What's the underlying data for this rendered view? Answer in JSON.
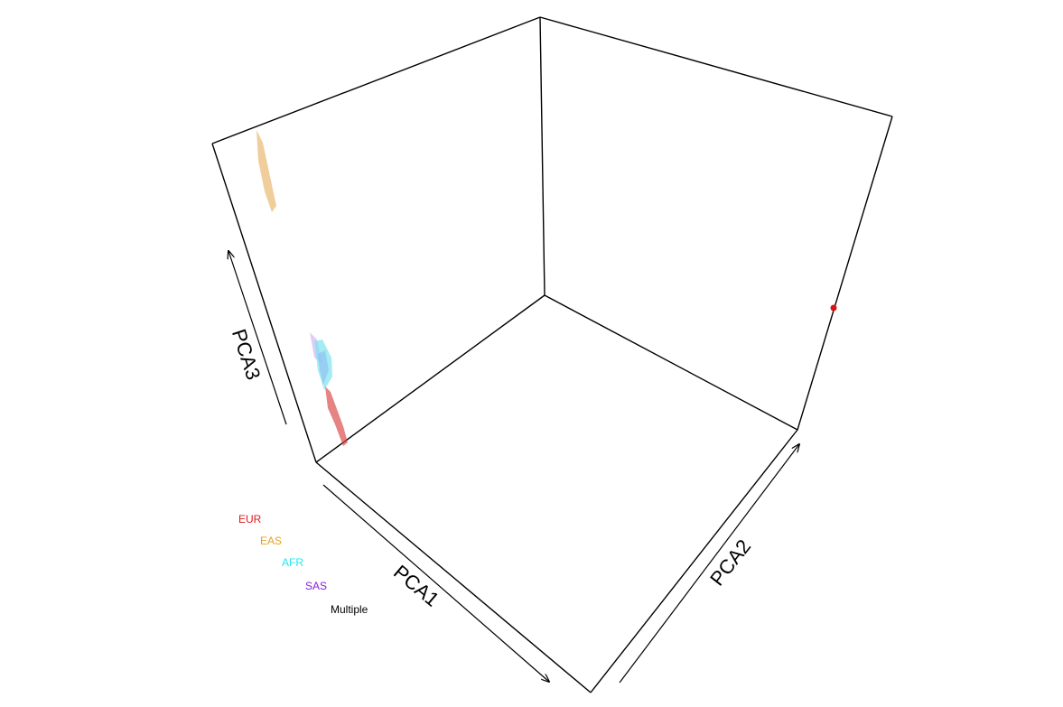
{
  "chart_data": {
    "type": "scatter",
    "title": "",
    "axes": {
      "x": {
        "label": "PCA1"
      },
      "y": {
        "label": "PCA2"
      },
      "z": {
        "label": "PCA3"
      }
    },
    "series": [
      {
        "name": "EUR",
        "color": "#dd1c1c"
      },
      {
        "name": "EAS",
        "color": "#e8a11b"
      },
      {
        "name": "AFR",
        "color": "#1de8ee"
      },
      {
        "name": "SAS",
        "color": "#8a1be0"
      },
      {
        "name": "Multiple",
        "color": "#000000"
      }
    ],
    "legend": {
      "placement": "bottom-left"
    },
    "box": true,
    "grid": false
  }
}
